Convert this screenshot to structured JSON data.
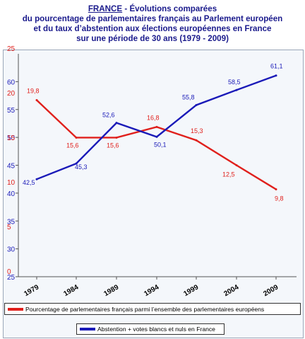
{
  "header": {
    "country": "FRANCE",
    "line1_rest": " - Évolutions comparées",
    "line2": "du pourcentage de parlementaires français au Parlement européen",
    "line3": "et du taux d’abstention aux élections européennes en France",
    "line4": "sur une période de 30 ans (1979 - 2009)"
  },
  "chart_data": {
    "type": "line",
    "x": [
      "1979",
      "1984",
      "1989",
      "1994",
      "1999",
      "2004",
      "2009"
    ],
    "series": [
      {
        "name": "Pourcentage de parlementaires français parmi l’ensemble des parlementaires européens",
        "color": "#e0201c",
        "values": [
          19.8,
          15.6,
          15.6,
          16.8,
          15.3,
          12.5,
          9.8
        ],
        "labels": [
          "19,8",
          "15,6",
          "15,6",
          "16,8",
          "15,3",
          "12,5",
          "9,8"
        ],
        "axis": "red",
        "ylim": [
          0,
          25
        ]
      },
      {
        "name": "Abstention + votes blancs et nuls en France",
        "color": "#1a1ab8",
        "values": [
          42.5,
          45.3,
          52.6,
          50.1,
          55.8,
          58.5,
          61.1
        ],
        "labels": [
          "42,5",
          "45,3",
          "52,6",
          "50,1",
          "55,8",
          "58,5",
          "61,1"
        ],
        "axis": "blue",
        "ylim": [
          25,
          65
        ]
      }
    ],
    "blue_axis_ticks": [
      "25",
      "30",
      "35",
      "40",
      "45",
      "50",
      "55",
      "60"
    ],
    "red_axis_ticks": [
      "0",
      "5",
      "10",
      "15",
      "20",
      "25"
    ],
    "legend": "bottom"
  }
}
